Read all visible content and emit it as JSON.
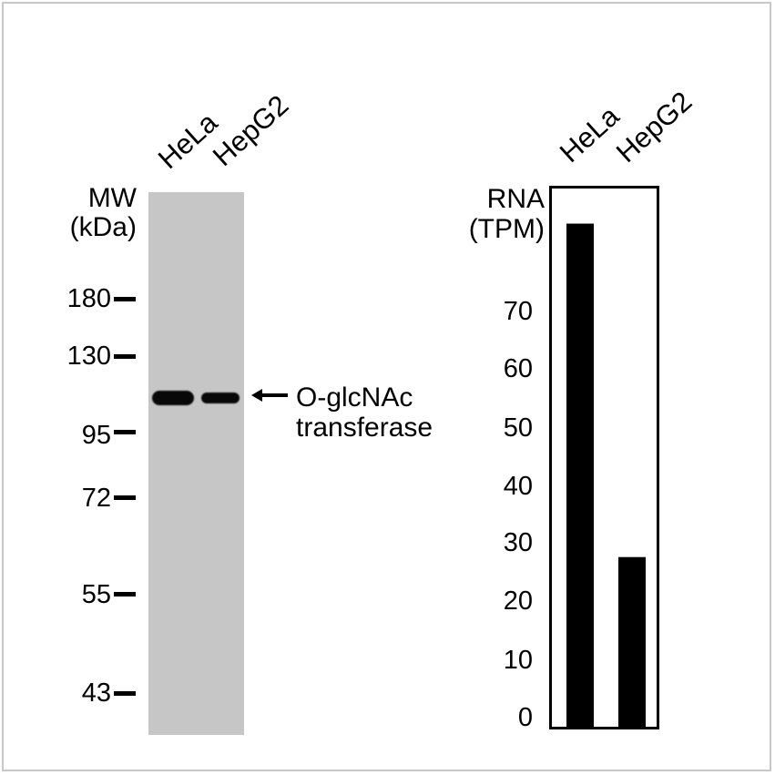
{
  "western_blot": {
    "lanes": [
      "HeLa",
      "HepG2"
    ],
    "mw_title_line1": "MW",
    "mw_title_line2": "(kDa)",
    "markers": [
      "180",
      "130",
      "95",
      "72",
      "55",
      "43"
    ],
    "target_label_line1": "O-glcNAc",
    "target_label_line2": "transferase",
    "blot_color": "#c6c6c6",
    "band_color": "#080808"
  },
  "chart_data": {
    "type": "bar",
    "categories": [
      "HeLa",
      "HepG2"
    ],
    "values": [
      86,
      29
    ],
    "title": "",
    "ylabel_line1": "RNA",
    "ylabel_line2": "(TPM)",
    "yticks": [
      "70",
      "60",
      "50",
      "40",
      "30",
      "20",
      "10",
      "0"
    ],
    "ylim": [
      0,
      92
    ],
    "grid": false,
    "bar_color": "#000000"
  }
}
